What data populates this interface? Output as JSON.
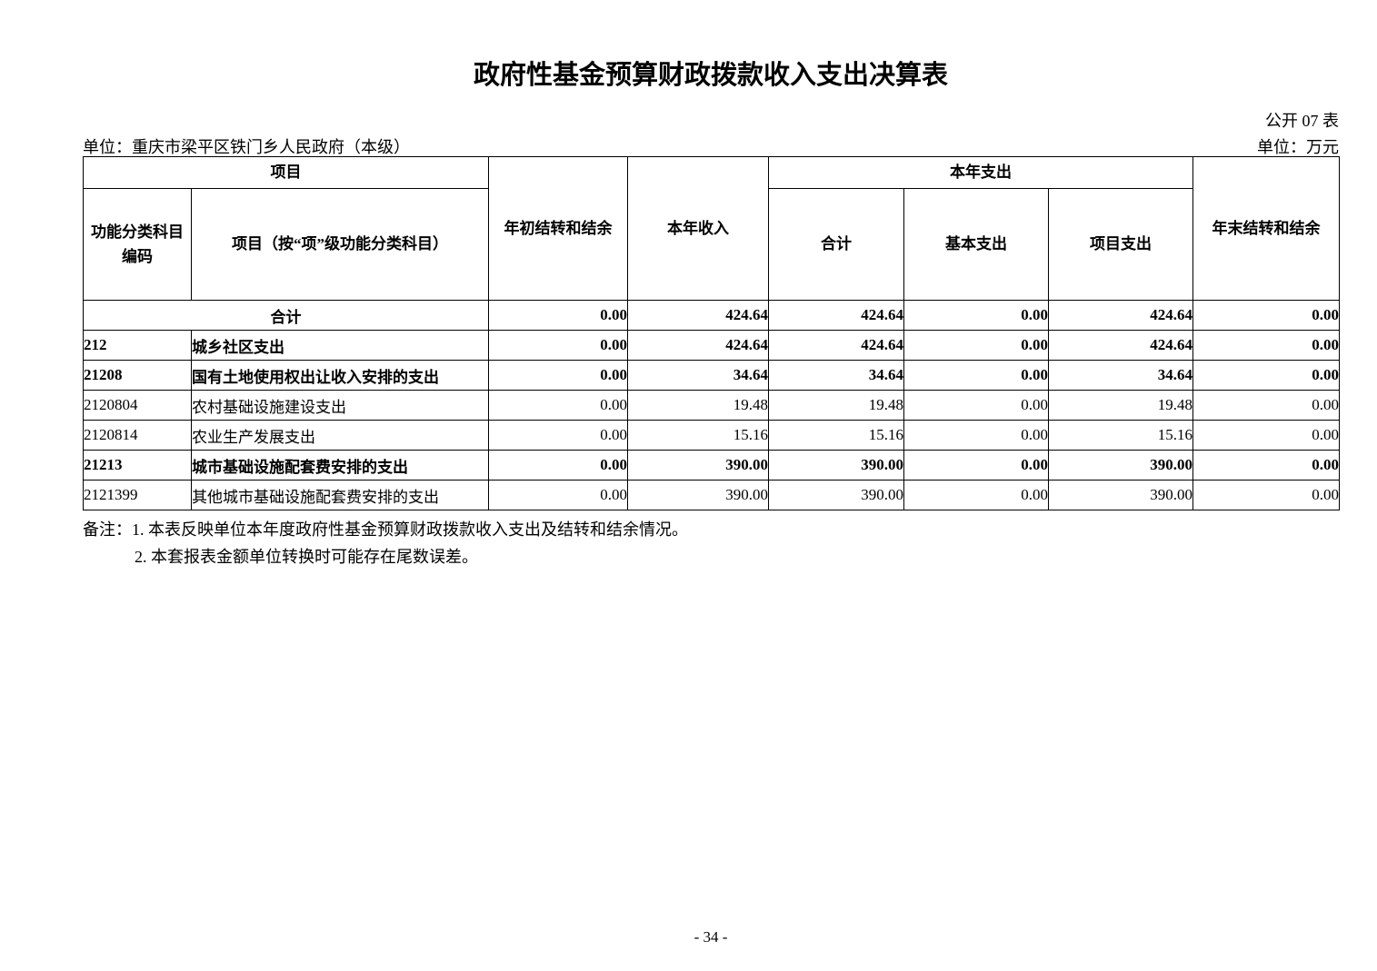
{
  "page": {
    "title": "政府性基金预算财政拨款收入支出决算表",
    "table_code": "公开 07 表",
    "unit_label": "单位：重庆市梁平区铁门乡人民政府（本级）",
    "currency_label": "单位：万元",
    "page_number": "- 34 -"
  },
  "table": {
    "header": {
      "item_group": "项目",
      "code": "功能分类科目编码",
      "item_detail": "项目（按“项”级功能分类科目）",
      "opening_balance": "年初结转和结余",
      "current_income": "本年收入",
      "expenditure_group": "本年支出",
      "total": "合计",
      "basic": "基本支出",
      "project": "项目支出",
      "closing_balance": "年末结转和结余"
    },
    "rows": [
      {
        "code": "",
        "name": "合计",
        "merged": true,
        "bold": true,
        "values": [
          "0.00",
          "424.64",
          "424.64",
          "0.00",
          "424.64",
          "0.00"
        ]
      },
      {
        "code": "212",
        "name": "城乡社区支出",
        "merged": false,
        "bold": true,
        "values": [
          "0.00",
          "424.64",
          "424.64",
          "0.00",
          "424.64",
          "0.00"
        ]
      },
      {
        "code": "21208",
        "name": "国有土地使用权出让收入安排的支出",
        "merged": false,
        "bold": true,
        "values": [
          "0.00",
          "34.64",
          "34.64",
          "0.00",
          "34.64",
          "0.00"
        ]
      },
      {
        "code": "2120804",
        "name": "农村基础设施建设支出",
        "merged": false,
        "bold": false,
        "values": [
          "0.00",
          "19.48",
          "19.48",
          "0.00",
          "19.48",
          "0.00"
        ]
      },
      {
        "code": "2120814",
        "name": "农业生产发展支出",
        "merged": false,
        "bold": false,
        "values": [
          "0.00",
          "15.16",
          "15.16",
          "0.00",
          "15.16",
          "0.00"
        ]
      },
      {
        "code": "21213",
        "name": "城市基础设施配套费安排的支出",
        "merged": false,
        "bold": true,
        "values": [
          "0.00",
          "390.00",
          "390.00",
          "0.00",
          "390.00",
          "0.00"
        ]
      },
      {
        "code": "2121399",
        "name": "其他城市基础设施配套费安排的支出",
        "merged": false,
        "bold": false,
        "values": [
          "0.00",
          "390.00",
          "390.00",
          "0.00",
          "390.00",
          "0.00"
        ]
      }
    ]
  },
  "notes": {
    "prefix": "备注：",
    "line1": "1. 本表反映单位本年度政府性基金预算财政拨款收入支出及结转和结余情况。",
    "line2": "2. 本套报表金额单位转换时可能存在尾数误差。"
  }
}
